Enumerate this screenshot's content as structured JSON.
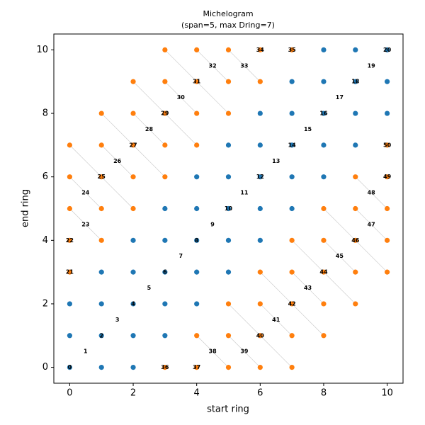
{
  "chart_data": {
    "type": "scatter",
    "title": "Michelogram",
    "subtitle": "(span=5, max Dring=7)",
    "x_label": "start ring",
    "y_label": "end ring",
    "xlim": [
      -0.5,
      10.5
    ],
    "ylim": [
      -0.5,
      10.5
    ],
    "xticks": [
      0,
      2,
      4,
      6,
      8,
      10
    ],
    "yticks": [
      0,
      2,
      4,
      6,
      8,
      10
    ],
    "series": [
      {
        "color": "#1f77b4",
        "x": [
          0,
          1,
          2,
          0,
          1,
          2,
          3,
          0,
          1,
          2,
          3,
          4,
          1,
          2,
          3,
          4,
          5,
          2,
          3,
          4,
          5,
          6,
          3,
          4,
          5,
          6,
          7,
          4,
          5,
          6,
          7,
          8,
          5,
          6,
          7,
          8,
          9,
          6,
          7,
          8,
          9,
          10,
          7,
          8,
          9,
          10,
          8,
          9,
          10
        ],
        "values": [
          0,
          0,
          0,
          1,
          1,
          1,
          1,
          2,
          2,
          2,
          2,
          2,
          3,
          3,
          3,
          3,
          3,
          4,
          4,
          4,
          4,
          4,
          5,
          5,
          5,
          5,
          5,
          6,
          6,
          6,
          6,
          6,
          7,
          7,
          7,
          7,
          7,
          8,
          8,
          8,
          8,
          8,
          9,
          9,
          9,
          9,
          10,
          10,
          10
        ]
      },
      {
        "color": "#ff7f0e",
        "x": [
          3,
          4,
          5,
          6,
          7,
          4,
          5,
          6,
          7,
          8,
          5,
          6,
          7,
          8,
          9,
          0,
          6,
          7,
          8,
          9,
          10,
          0,
          1,
          7,
          8,
          9,
          10,
          0,
          1,
          2,
          8,
          9,
          10,
          0,
          1,
          2,
          3,
          9,
          10,
          0,
          1,
          2,
          3,
          4,
          10,
          1,
          2,
          3,
          4,
          5,
          2,
          3,
          4,
          5,
          6,
          3,
          4,
          5,
          6,
          7
        ],
        "values": [
          0,
          0,
          0,
          0,
          0,
          1,
          1,
          1,
          1,
          1,
          2,
          2,
          2,
          2,
          2,
          3,
          3,
          3,
          3,
          3,
          3,
          4,
          4,
          4,
          4,
          4,
          4,
          5,
          5,
          5,
          5,
          5,
          5,
          6,
          6,
          6,
          6,
          6,
          6,
          7,
          7,
          7,
          7,
          7,
          7,
          8,
          8,
          8,
          8,
          8,
          9,
          9,
          9,
          9,
          9,
          10,
          10,
          10,
          10,
          10
        ]
      }
    ],
    "annotations": [
      {
        "text": "0",
        "x": 0,
        "y": 0
      },
      {
        "text": "1",
        "x": 0.5,
        "y": 0.5
      },
      {
        "text": "2",
        "x": 1,
        "y": 1
      },
      {
        "text": "3",
        "x": 1.5,
        "y": 1.5
      },
      {
        "text": "4",
        "x": 2,
        "y": 2
      },
      {
        "text": "5",
        "x": 2.5,
        "y": 2.5
      },
      {
        "text": "6",
        "x": 3,
        "y": 3
      },
      {
        "text": "7",
        "x": 3.5,
        "y": 3.5
      },
      {
        "text": "8",
        "x": 4,
        "y": 4
      },
      {
        "text": "9",
        "x": 4.5,
        "y": 4.5
      },
      {
        "text": "10",
        "x": 5,
        "y": 5
      },
      {
        "text": "11",
        "x": 5.5,
        "y": 5.5
      },
      {
        "text": "12",
        "x": 6,
        "y": 6
      },
      {
        "text": "13",
        "x": 6.5,
        "y": 6.5
      },
      {
        "text": "14",
        "x": 7,
        "y": 7
      },
      {
        "text": "15",
        "x": 7.5,
        "y": 7.5
      },
      {
        "text": "16",
        "x": 8,
        "y": 8
      },
      {
        "text": "17",
        "x": 8.5,
        "y": 8.5
      },
      {
        "text": "18",
        "x": 9,
        "y": 9
      },
      {
        "text": "19",
        "x": 9.5,
        "y": 9.5
      },
      {
        "text": "20",
        "x": 10,
        "y": 10
      },
      {
        "text": "21",
        "x": 0,
        "y": 3
      },
      {
        "text": "22",
        "x": 0,
        "y": 4
      },
      {
        "text": "23",
        "x": 0.5,
        "y": 4.5
      },
      {
        "text": "24",
        "x": 0.5,
        "y": 5.5
      },
      {
        "text": "25",
        "x": 1,
        "y": 6
      },
      {
        "text": "26",
        "x": 1.5,
        "y": 6.5
      },
      {
        "text": "27",
        "x": 2,
        "y": 7
      },
      {
        "text": "28",
        "x": 2.5,
        "y": 7.5
      },
      {
        "text": "29",
        "x": 3,
        "y": 8
      },
      {
        "text": "30",
        "x": 3.5,
        "y": 8.5
      },
      {
        "text": "31",
        "x": 4,
        "y": 9
      },
      {
        "text": "32",
        "x": 4.5,
        "y": 9.5
      },
      {
        "text": "33",
        "x": 5.5,
        "y": 9.5
      },
      {
        "text": "34",
        "x": 6,
        "y": 10
      },
      {
        "text": "35",
        "x": 7,
        "y": 10
      },
      {
        "text": "36",
        "x": 3,
        "y": 0
      },
      {
        "text": "37",
        "x": 4,
        "y": 0
      },
      {
        "text": "38",
        "x": 4.5,
        "y": 0.5
      },
      {
        "text": "39",
        "x": 5.5,
        "y": 0.5
      },
      {
        "text": "40",
        "x": 6,
        "y": 1
      },
      {
        "text": "41",
        "x": 6.5,
        "y": 1.5
      },
      {
        "text": "42",
        "x": 7,
        "y": 2
      },
      {
        "text": "43",
        "x": 7.5,
        "y": 2.5
      },
      {
        "text": "44",
        "x": 8,
        "y": 3
      },
      {
        "text": "45",
        "x": 8.5,
        "y": 3.5
      },
      {
        "text": "46",
        "x": 9,
        "y": 4
      },
      {
        "text": "47",
        "x": 9.5,
        "y": 4.5
      },
      {
        "text": "48",
        "x": 9.5,
        "y": 5.5
      },
      {
        "text": "49",
        "x": 10,
        "y": 6
      },
      {
        "text": "50",
        "x": 10,
        "y": 7
      }
    ]
  }
}
